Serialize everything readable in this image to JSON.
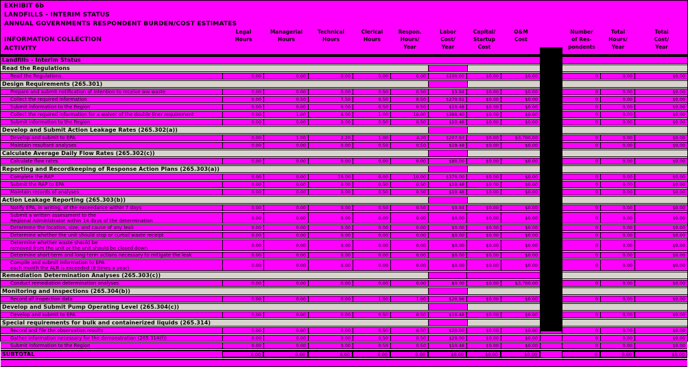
{
  "title": {
    "line1": "EXHIBIT 6b",
    "line2": "LANDFILLS - INTERIM STATUS",
    "line3": "ANNUAL GOVERNMENTS RESPONDENT BURDEN/COST ESTIMATES"
  },
  "left_header": {
    "line1": "INFORMATION COLLECTION",
    "line2": "ACTIVITY"
  },
  "colors": {
    "page_background": "#FF00FF",
    "section_row_background": "#D8D4CD",
    "redaction_bar": "#000000",
    "text": "#000000"
  },
  "columns": [
    {
      "key": "legal_hours",
      "lines": "Legal\nHours"
    },
    {
      "key": "managerial_hours",
      "lines": "Managerial\nHours"
    },
    {
      "key": "technical_hours",
      "lines": "Technical\nHours"
    },
    {
      "key": "clerical_hours",
      "lines": "Clerical\nHours"
    },
    {
      "key": "respondent_hours_year",
      "lines": "Respon.\nHours/\nYear"
    },
    {
      "key": "labor_cost_year",
      "lines": "Labor\nCost/\nYear"
    },
    {
      "key": "capital_startup_cost",
      "lines": "Capital/\nStartup\nCost"
    },
    {
      "key": "om_cost",
      "lines": "O&M\nCost"
    },
    {
      "key": "redacted_column",
      "lines": ""
    },
    {
      "key": "number_of_respondents",
      "lines": "Number\nof Res-\npondents"
    },
    {
      "key": "total_hours_year",
      "lines": "Total\nHours/\nYear"
    },
    {
      "key": "total_cost_year",
      "lines": "Total\nCost/\nYear"
    }
  ],
  "rows": [
    {
      "t": "titlerow",
      "label": "Landfills - Interim Status"
    },
    {
      "t": "section",
      "label": "Read the Regulations"
    },
    {
      "t": "item",
      "label": "Read the Regulations",
      "v": [
        "0.00",
        "0.00",
        "0.00",
        "0.00",
        "0.00",
        "$100.00",
        "$0.00",
        "$0.00",
        "0",
        "0.00",
        "$0.00"
      ]
    },
    {
      "t": "section",
      "label": "Design Requirements (265.301)"
    },
    {
      "t": "item",
      "label": "Prepare and submit notification of intention to receive ww waste",
      "v": [
        "0.00",
        "0.00",
        "0.00",
        "0.50",
        "0.50",
        "$9.84",
        "$0.00",
        "$0.00",
        "0",
        "0.00",
        "$0.00"
      ]
    },
    {
      "t": "item",
      "label": "Collect the required information",
      "v": [
        "0.00",
        "0.50",
        "7.50",
        "0.50",
        "8.50",
        "$270.91",
        "$0.00",
        "$0.00",
        "0",
        "0.00",
        "$0.00"
      ]
    },
    {
      "t": "item",
      "label": "Submit information to the Region",
      "v": [
        "0.00",
        "0.00",
        "0.00",
        "0.50",
        "0.50",
        "$10.48",
        "$0.00",
        "$0.00",
        "0",
        "0.00",
        "$0.00"
      ]
    },
    {
      "t": "item",
      "label": "Collect the required information for a waiver of the double liner requirement",
      "v": [
        "0.00",
        "1.00",
        "8.00",
        "1.00",
        "10.00",
        "$388.40",
        "$0.00",
        "$0.00",
        "0",
        "0.00",
        "$0.00"
      ]
    },
    {
      "t": "item",
      "label": "Submit information to the Region",
      "v": [
        "0.00",
        "0.00",
        "0.00",
        "0.50",
        "0.50",
        "$10.48",
        "$0.00",
        "$0.00",
        "0",
        "0.00",
        "$0.00"
      ]
    },
    {
      "t": "section",
      "label": "Develop and Submit Action Leakage Rates (265.302(a))"
    },
    {
      "t": "item",
      "label": "Develop and submit to EPA",
      "v": [
        "0.00",
        "1.00",
        "2.20",
        "1.00",
        "4.20",
        "$207.93",
        "$0.00",
        "$3,700.00",
        "0",
        "0.00",
        "$0.00"
      ]
    },
    {
      "t": "item",
      "label": "Maintain resultant analyses",
      "v": [
        "0.00",
        "0.00",
        "0.00",
        "0.50",
        "0.50",
        "$18.48",
        "$0.00",
        "$0.00",
        "0",
        "0.00",
        "$0.00"
      ]
    },
    {
      "t": "section",
      "label": "Calculate Average Daily Flow Rates (265.302(c))"
    },
    {
      "t": "item",
      "label": "Calculate flow rates",
      "v": [
        "0.00",
        "0.00",
        "0.00",
        "0.00",
        "0.00",
        "$80.00",
        "$0.00",
        "$0.00",
        "0",
        "0.00",
        "$0.00"
      ]
    },
    {
      "t": "section",
      "label": "Reporting and Recordkeeping of Response Action Plans (265.303(a))"
    },
    {
      "t": "item",
      "label": "Complete the RAP",
      "v": [
        "0.00",
        "0.00",
        "10.00",
        "0.00",
        "10.00",
        "$370.00",
        "$0.00",
        "$0.00",
        "0",
        "0.00",
        "$0.00"
      ]
    },
    {
      "t": "item",
      "label": "Submit the RAP to EPA",
      "v": [
        "0.00",
        "0.00",
        "0.00",
        "0.50",
        "0.50",
        "$10.48",
        "$0.00",
        "$0.00",
        "0",
        "0.00",
        "$0.00"
      ]
    },
    {
      "t": "item",
      "label": "Maintain records of analyses",
      "v": [
        "0.00",
        "0.00",
        "0.00",
        "0.50",
        "0.50",
        "$10.48",
        "$0.00",
        "$0.00",
        "0",
        "0.00",
        "$0.00"
      ]
    },
    {
      "t": "section",
      "label": "Action Leakage Reporting (265.303(b))"
    },
    {
      "t": "item",
      "label": "Notify EPA, in writing, of the exceedance within 7 days",
      "v": [
        "0.00",
        "0.00",
        "0.00",
        "0.50",
        "0.50",
        "$9.84",
        "$0.00",
        "$0.00",
        "0",
        "0.00",
        "$0.00"
      ]
    },
    {
      "t": "item2",
      "label": "Submit a written assessment to the\nRegional Administrator within 14 days of the determination",
      "v": [
        "0.00",
        "0.00",
        "0.00",
        "0.00",
        "0.00",
        "$0.00",
        "$0.00",
        "$0.00",
        "0",
        "0.00",
        "$0.00"
      ]
    },
    {
      "t": "item",
      "label": "Determine the location, size, and cause of any leak",
      "v": [
        "0.00",
        "0.00",
        "0.00",
        "0.00",
        "0.00",
        "$0.00",
        "$0.00",
        "$0.00",
        "0",
        "0.00",
        "$0.00"
      ]
    },
    {
      "t": "item",
      "label": "Determine whether the unit should stop or curtail waste receipt",
      "v": [
        "0.00",
        "0.00",
        "0.00",
        "0.00",
        "0.00",
        "$0.00",
        "$0.00",
        "$0.00",
        "0",
        "0.00",
        "$0.00"
      ]
    },
    {
      "t": "item2",
      "label": "Determine whether waste should be\nremoved from the unit or the unit should be closed down",
      "v": [
        "0.00",
        "0.00",
        "0.00",
        "0.00",
        "0.00",
        "$0.00",
        "$0.00",
        "$0.00",
        "0",
        "0.00",
        "$0.00"
      ]
    },
    {
      "t": "item",
      "label": "Determine short-term and long-term actions necessary to mitigate the leak",
      "v": [
        "0.00",
        "0.00",
        "0.00",
        "0.00",
        "0.00",
        "$0.00",
        "$0.00",
        "$0.00",
        "0",
        "0.00",
        "$0.00"
      ]
    },
    {
      "t": "item2",
      "label": "Compile and submit information to EPA\neach month the ALR is exceeded (6 times a year)",
      "v": [
        "0.00",
        "0.00",
        "0.00",
        "0.00",
        "0.00",
        "$0.00",
        "$0.00",
        "$0.00",
        "0",
        "0.00",
        "$0.00"
      ]
    },
    {
      "t": "section",
      "label": "Remediation Determination Analyses (265.303(c))"
    },
    {
      "t": "item",
      "label": "Conduct remediation determination analyses",
      "v": [
        "0.00",
        "0.00",
        "0.00",
        "0.00",
        "0.00",
        "$0.00",
        "$0.00",
        "$3,700.00",
        "0",
        "0.00",
        "$0.00"
      ]
    },
    {
      "t": "section",
      "label": "Monitoring and Inspections (265.304(b))"
    },
    {
      "t": "item",
      "label": "Record all inspection data",
      "v": [
        "0.00",
        "0.00",
        "0.00",
        "1.00",
        "1.00",
        "$20.96",
        "$0.00",
        "$0.00",
        "0",
        "0.00",
        "$0.00"
      ]
    },
    {
      "t": "section",
      "label": "Develop and Submit Pump Operating Level (265.304(c))"
    },
    {
      "t": "item",
      "label": "Develop and submit to EPA",
      "v": [
        "0.00",
        "0.00",
        "0.00",
        "0.50",
        "0.50",
        "$10.48",
        "$0.00",
        "$0.00",
        "0",
        "0.00",
        "$0.00"
      ]
    },
    {
      "t": "section",
      "label": "Special requirements for bulk and containerized liquids (265.314)"
    },
    {
      "t": "item",
      "label": "Record and file the observation results",
      "v": [
        "0.00",
        "0.00",
        "0.00",
        "0.50",
        "0.50",
        "$20.00",
        "$0.00",
        "$0.00",
        "0",
        "0.00",
        "$0.00"
      ]
    },
    {
      "t": "item",
      "label": "Gather information necessary for the demonstration (265.314(f))",
      "v": [
        "0.00",
        "0.00",
        "0.00",
        "0.50",
        "0.50",
        "$28.00",
        "$0.00",
        "$0.00",
        "0",
        "0.00",
        "$0.00"
      ]
    },
    {
      "t": "item",
      "label": "Submit information to the Region",
      "v": [
        "0.00",
        "0.00",
        "0.00",
        "0.50",
        "0.50",
        "$10.48",
        "$0.00",
        "$0.00",
        "0",
        "0.00",
        "$0.00"
      ]
    },
    {
      "t": "subtotal",
      "label": "SUBTOTAL",
      "v": [
        "0.00",
        "0.00",
        "0.00",
        "0.00",
        "0.00",
        "$0.00",
        "$0.00",
        "$0.00",
        "0",
        "0.00",
        "$0.00"
      ]
    }
  ]
}
